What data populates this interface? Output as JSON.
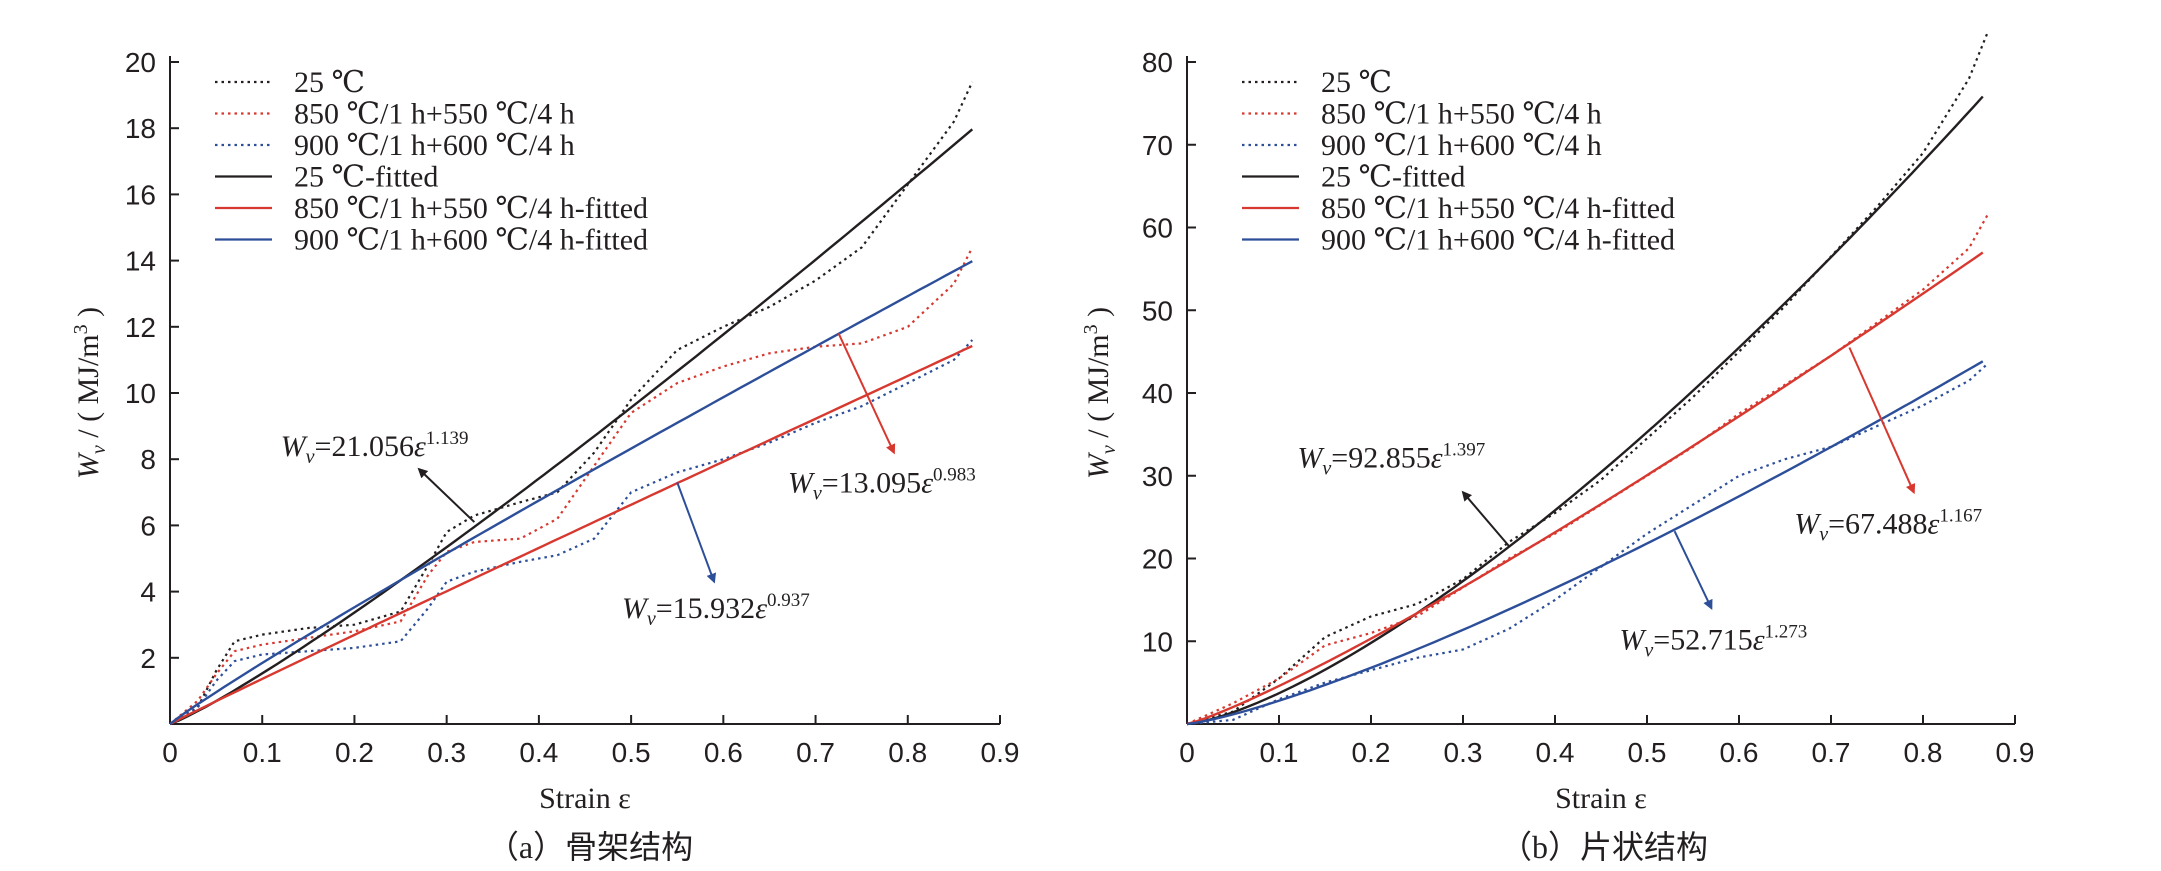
{
  "legend": [
    {
      "label": "25 ℃",
      "style": "dotted",
      "color": "#231f20"
    },
    {
      "label": "850 ℃/1 h+550 ℃/4 h",
      "style": "dotted",
      "color": "#d7382f"
    },
    {
      "label": "900 ℃/1 h+600 ℃/4 h",
      "style": "dotted",
      "color": "#2d4f9a"
    },
    {
      "label": "25 ℃-fitted",
      "style": "solid",
      "color": "#231f20"
    },
    {
      "label": "850 ℃/1 h+550 ℃/4 h-fitted",
      "style": "solid",
      "color": "#d7382f"
    },
    {
      "label": "900 ℃/1 h+600 ℃/4 h-fitted",
      "style": "solid",
      "color": "#2d4f9a"
    }
  ],
  "colors": {
    "black": "#231f20",
    "red": "#d7382f",
    "blue": "#2d4f9a"
  },
  "chart_data": [
    {
      "type": "line",
      "caption": "（a）骨架结构",
      "xlabel": "Strain ε",
      "ylabel": "Wv / (MJ/m³)",
      "ylabel_parts": {
        "sym": "W",
        "sub": "v",
        "rest": " / ( MJ/m",
        "sup": "3",
        "close": " )"
      },
      "xlim": [
        0,
        0.9
      ],
      "ylim": [
        0,
        20
      ],
      "xticks": [
        "0",
        "0.1",
        "0.2",
        "0.3",
        "0.4",
        "0.5",
        "0.6",
        "0.7",
        "0.8",
        "0.9"
      ],
      "yticks": [
        "2",
        "4",
        "6",
        "8",
        "10",
        "12",
        "14",
        "16",
        "18",
        "20"
      ],
      "legend_position": "top-left",
      "series": [
        {
          "name": "25 ℃",
          "style": "dotted",
          "color": "#231f20",
          "x": [
            0,
            0.03,
            0.05,
            0.07,
            0.1,
            0.15,
            0.2,
            0.25,
            0.28,
            0.3,
            0.33,
            0.38,
            0.42,
            0.46,
            0.5,
            0.55,
            0.6,
            0.65,
            0.7,
            0.75,
            0.8,
            0.85,
            0.87
          ],
          "y": [
            0,
            0.5,
            1.6,
            2.5,
            2.7,
            2.9,
            3.0,
            3.4,
            4.8,
            5.8,
            6.3,
            6.7,
            7.0,
            8.2,
            9.8,
            11.3,
            12.0,
            12.6,
            13.4,
            14.4,
            16.3,
            18.2,
            19.4
          ]
        },
        {
          "name": "850 ℃/1 h+550 ℃/4 h",
          "style": "dotted",
          "color": "#d7382f",
          "x": [
            0,
            0.03,
            0.05,
            0.07,
            0.1,
            0.15,
            0.2,
            0.25,
            0.28,
            0.3,
            0.33,
            0.38,
            0.42,
            0.46,
            0.5,
            0.55,
            0.6,
            0.65,
            0.7,
            0.75,
            0.8,
            0.85,
            0.87
          ],
          "y": [
            0,
            0.7,
            1.5,
            2.2,
            2.4,
            2.6,
            2.8,
            3.1,
            4.5,
            5.2,
            5.5,
            5.6,
            6.2,
            7.8,
            9.4,
            10.3,
            10.8,
            11.2,
            11.4,
            11.5,
            12.0,
            13.3,
            14.4
          ]
        },
        {
          "name": "900 ℃/1 h+600 ℃/4 h",
          "style": "dotted",
          "color": "#2d4f9a",
          "x": [
            0,
            0.03,
            0.05,
            0.07,
            0.1,
            0.15,
            0.2,
            0.25,
            0.28,
            0.3,
            0.33,
            0.38,
            0.42,
            0.46,
            0.5,
            0.55,
            0.6,
            0.65,
            0.7,
            0.75,
            0.8,
            0.85,
            0.87
          ],
          "y": [
            0,
            0.5,
            1.3,
            1.9,
            2.1,
            2.2,
            2.3,
            2.5,
            3.5,
            4.3,
            4.6,
            4.9,
            5.1,
            5.6,
            7.0,
            7.6,
            8.0,
            8.5,
            9.1,
            9.6,
            10.3,
            11.0,
            11.6
          ]
        },
        {
          "name": "25 ℃-fitted",
          "style": "solid",
          "color": "#231f20",
          "a": 21.056,
          "b": 1.139,
          "xmax": 0.87
        },
        {
          "name": "850 ℃/1 h+550 ℃/4 h-fitted",
          "style": "solid",
          "color": "#d7382f",
          "a": 13.095,
          "b": 0.983,
          "xmax": 0.87
        },
        {
          "name": "900 ℃/1 h+600 ℃/4 h-fitted",
          "style": "solid",
          "color": "#2d4f9a",
          "a": 15.932,
          "b": 0.937,
          "xmax": 0.87
        }
      ],
      "annotations": [
        {
          "label_coef": "=21.056",
          "exponent": "1.139",
          "color": "#231f20",
          "text_at": [
            0.12,
            8.1
          ],
          "arrow_from": [
            0.33,
            6.1
          ],
          "arrow_to": [
            0.27,
            7.7
          ]
        },
        {
          "label_coef": "=13.095",
          "exponent": "0.983",
          "color": "#d7382f",
          "text_at": [
            0.67,
            7.0
          ],
          "arrow_from": [
            0.725,
            11.8
          ],
          "arrow_to": [
            0.785,
            8.2
          ]
        },
        {
          "label_coef": "=15.932",
          "exponent": "0.937",
          "color": "#2d4f9a",
          "text_at": [
            0.49,
            3.2
          ],
          "arrow_from": [
            0.55,
            7.3
          ],
          "arrow_to": [
            0.59,
            4.3
          ]
        }
      ]
    },
    {
      "type": "line",
      "caption": "（b）片状结构",
      "xlabel": "Strain ε",
      "ylabel": "Wv / (MJ/m³)",
      "ylabel_parts": {
        "sym": "W",
        "sub": "v",
        "rest": " / ( MJ/m",
        "sup": "3",
        "close": " )"
      },
      "xlim": [
        0,
        0.9
      ],
      "ylim": [
        0,
        80
      ],
      "xticks": [
        "0",
        "0.1",
        "0.2",
        "0.3",
        "0.4",
        "0.5",
        "0.6",
        "0.7",
        "0.8",
        "0.9"
      ],
      "yticks": [
        "10",
        "20",
        "30",
        "40",
        "50",
        "60",
        "70",
        "80"
      ],
      "legend_position": "top-left",
      "series": [
        {
          "name": "25 ℃",
          "style": "dotted",
          "color": "#231f20",
          "x": [
            0,
            0.05,
            0.1,
            0.15,
            0.2,
            0.25,
            0.3,
            0.35,
            0.4,
            0.45,
            0.5,
            0.55,
            0.6,
            0.65,
            0.7,
            0.75,
            0.8,
            0.85,
            0.87
          ],
          "y": [
            0,
            1.5,
            5.5,
            10.5,
            13.0,
            14.5,
            17.5,
            22.0,
            25.5,
            29.5,
            34.5,
            39.5,
            45.0,
            50.5,
            56.5,
            62.5,
            69.0,
            78.0,
            83.5
          ]
        },
        {
          "name": "850 ℃/1 h+550 ℃/4 h",
          "style": "dotted",
          "color": "#d7382f",
          "x": [
            0,
            0.05,
            0.1,
            0.15,
            0.2,
            0.25,
            0.3,
            0.35,
            0.4,
            0.45,
            0.5,
            0.55,
            0.6,
            0.65,
            0.7,
            0.75,
            0.8,
            0.85,
            0.87
          ],
          "y": [
            0,
            2.5,
            5.5,
            9.5,
            11.0,
            13.0,
            16.5,
            20.0,
            23.0,
            26.5,
            30.0,
            33.5,
            37.5,
            41.0,
            44.5,
            48.5,
            52.5,
            57.5,
            61.5
          ]
        },
        {
          "name": "900 ℃/1 h+600 ℃/4 h",
          "style": "dotted",
          "color": "#2d4f9a",
          "x": [
            0,
            0.05,
            0.1,
            0.15,
            0.2,
            0.25,
            0.3,
            0.35,
            0.4,
            0.45,
            0.5,
            0.55,
            0.6,
            0.65,
            0.7,
            0.75,
            0.8,
            0.85,
            0.87
          ],
          "y": [
            0,
            0.5,
            3.0,
            5.0,
            6.5,
            8.0,
            9.0,
            11.5,
            15.0,
            19.0,
            23.0,
            26.5,
            30.0,
            32.0,
            33.5,
            36.0,
            38.5,
            41.5,
            43.5
          ]
        },
        {
          "name": "25 ℃-fitted",
          "style": "solid",
          "color": "#231f20",
          "a": 92.855,
          "b": 1.397,
          "xmax": 0.865
        },
        {
          "name": "850 ℃/1 h+550 ℃/4 h-fitted",
          "style": "solid",
          "color": "#d7382f",
          "a": 67.488,
          "b": 1.167,
          "xmax": 0.865
        },
        {
          "name": "900 ℃/1 h+600 ℃/4 h-fitted",
          "style": "solid",
          "color": "#2d4f9a",
          "a": 52.715,
          "b": 1.273,
          "xmax": 0.865
        }
      ],
      "annotations": [
        {
          "label_coef": "=92.855",
          "exponent": "1.397",
          "color": "#231f20",
          "text_at": [
            0.12,
            31.0
          ],
          "arrow_from": [
            0.35,
            21.5
          ],
          "arrow_to": [
            0.3,
            28.0
          ]
        },
        {
          "label_coef": "=67.488",
          "exponent": "1.167",
          "color": "#d7382f",
          "text_at": [
            0.66,
            23.0
          ],
          "arrow_from": [
            0.72,
            45.5
          ],
          "arrow_to": [
            0.79,
            28.0
          ]
        },
        {
          "label_coef": "=52.715",
          "exponent": "1.273",
          "color": "#2d4f9a",
          "text_at": [
            0.47,
            9.0
          ],
          "arrow_from": [
            0.53,
            23.3
          ],
          "arrow_to": [
            0.57,
            14.0
          ]
        }
      ]
    }
  ]
}
